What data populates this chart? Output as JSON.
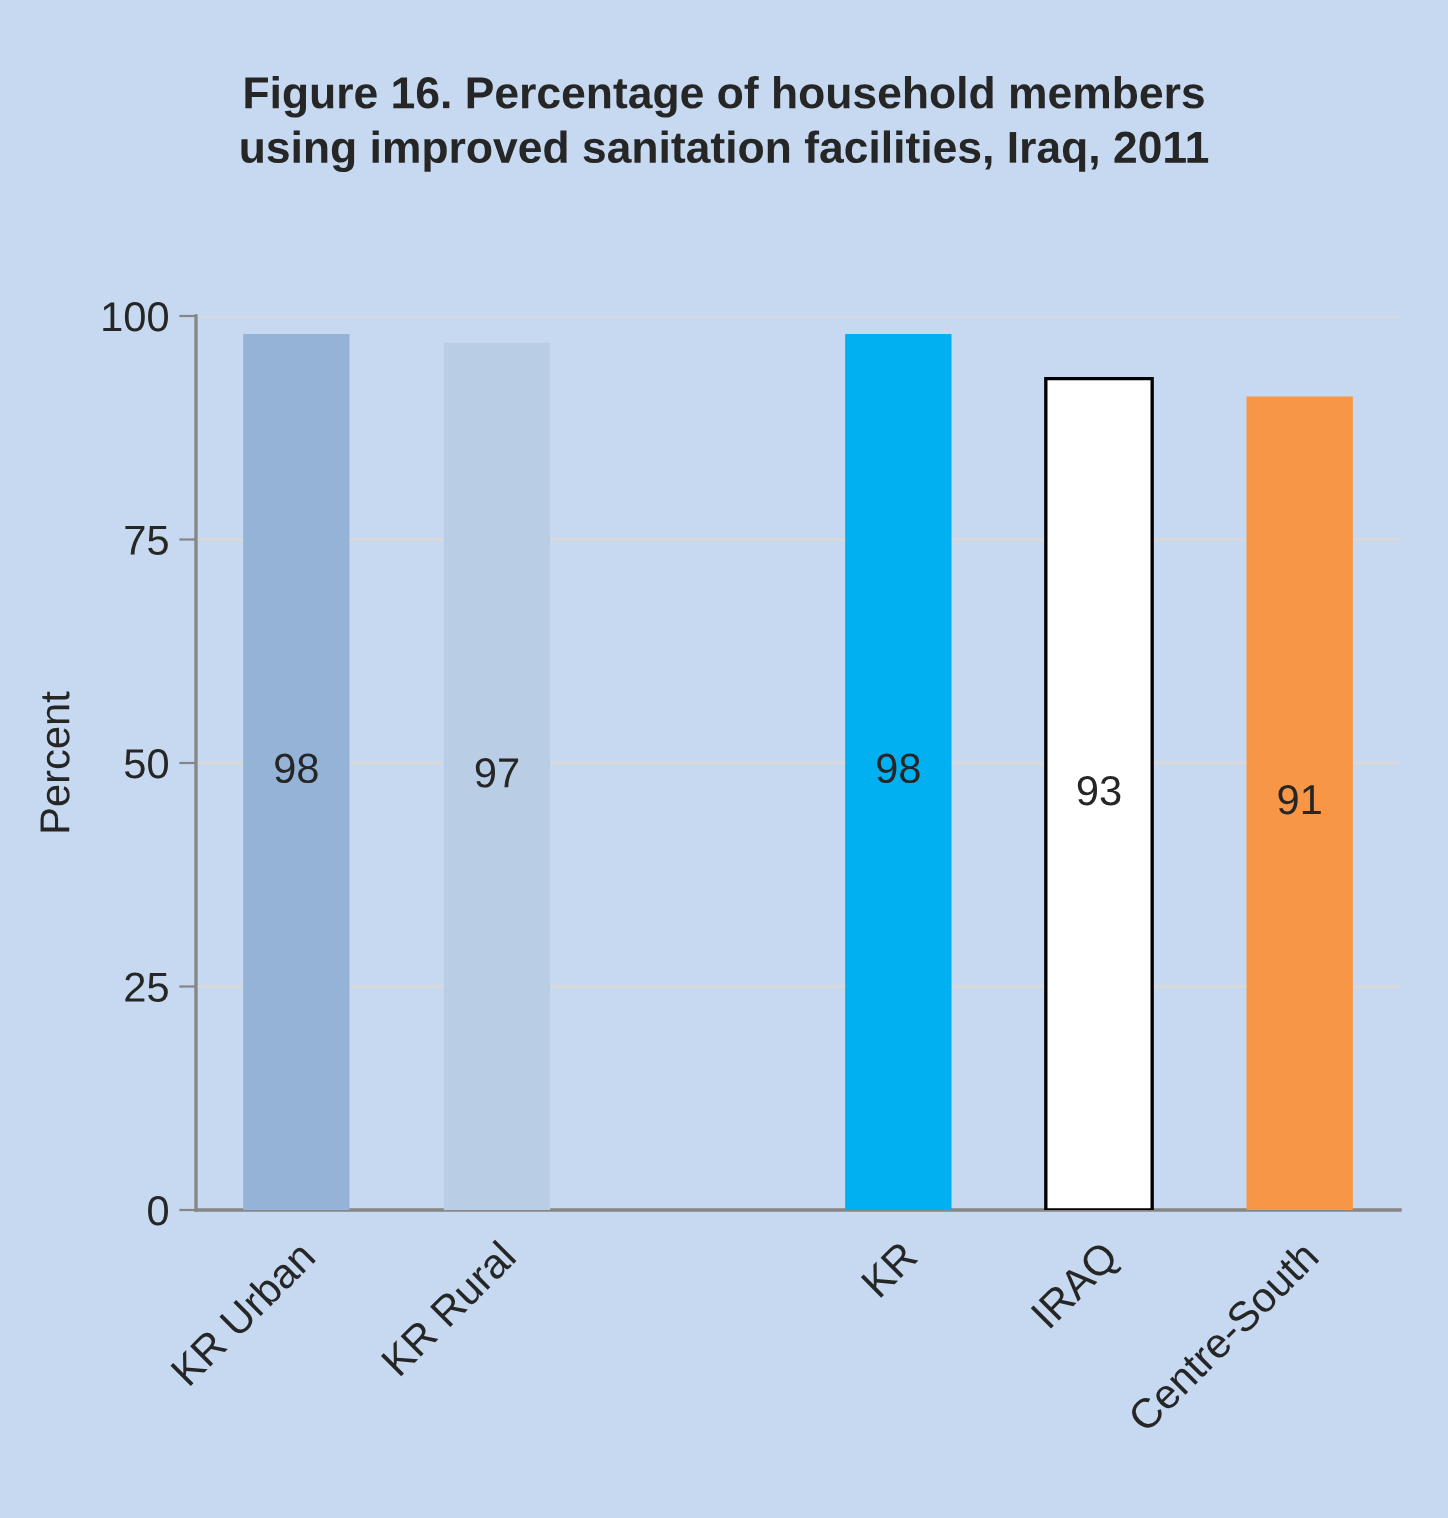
{
  "chart_data": {
    "type": "bar",
    "title": "Figure 16. Percentage of household members\nusing improved sanitation facilities, Iraq, 2011",
    "ylabel": "Percent",
    "categories": [
      "KR Urban",
      "KR Rural",
      null,
      "KR",
      "IRAQ",
      "Centre-South"
    ],
    "values": [
      98,
      97,
      null,
      98,
      93,
      91
    ],
    "colors": [
      "#95b3d7",
      "#b9cde5",
      "#ffffff",
      "#00b0f0",
      "#ffffff",
      "#f79646"
    ],
    "ylim": [
      0,
      100
    ],
    "yticks": [
      0,
      25,
      50,
      75,
      100
    ],
    "grid": "y",
    "data_labels": true,
    "legend": false
  }
}
